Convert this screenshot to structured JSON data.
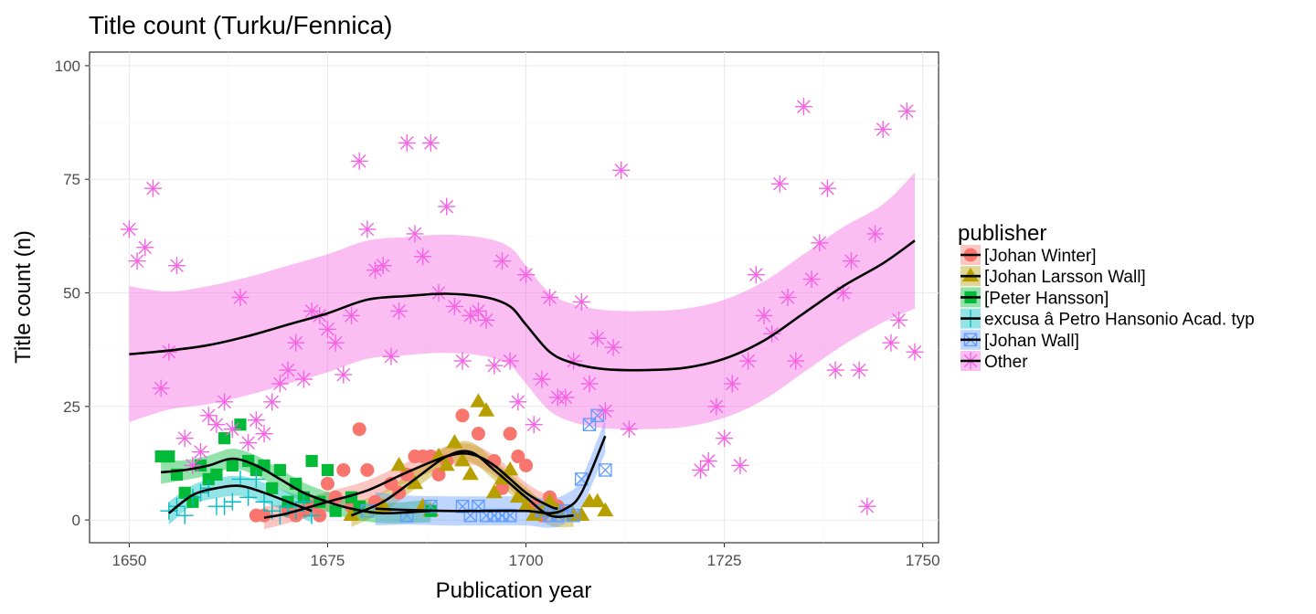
{
  "chart_data": {
    "type": "scatter",
    "title": "Title count (Turku/Fennica)",
    "xlabel": "Publication year",
    "ylabel": "Title count (n)",
    "xlim": [
      1645,
      1752
    ],
    "ylim": [
      -5,
      103
    ],
    "x_ticks": [
      1650,
      1675,
      1700,
      1725,
      1750
    ],
    "y_ticks": [
      0,
      25,
      50,
      75,
      100
    ],
    "grid": true,
    "legend_title": "publisher",
    "legend_position": "right",
    "series": [
      {
        "name": "[Johan Winter]",
        "color": "#F8766D",
        "marker": "circle",
        "points": [
          [
            1666,
            1
          ],
          [
            1667,
            1
          ],
          [
            1670,
            2
          ],
          [
            1671,
            1
          ],
          [
            1672,
            2
          ],
          [
            1673,
            3
          ],
          [
            1674,
            1
          ],
          [
            1675,
            8
          ],
          [
            1676,
            5
          ],
          [
            1677,
            11
          ],
          [
            1678,
            3
          ],
          [
            1679,
            20
          ],
          [
            1680,
            11
          ],
          [
            1681,
            4
          ],
          [
            1683,
            8
          ],
          [
            1684,
            6
          ],
          [
            1685,
            10
          ],
          [
            1686,
            14
          ],
          [
            1687,
            14
          ],
          [
            1688,
            14
          ],
          [
            1689,
            10
          ],
          [
            1690,
            13
          ],
          [
            1692,
            23
          ],
          [
            1694,
            19
          ],
          [
            1696,
            13
          ],
          [
            1697,
            7
          ],
          [
            1698,
            19
          ],
          [
            1699,
            14
          ],
          [
            1700,
            12
          ],
          [
            1701,
            3
          ],
          [
            1702,
            1
          ],
          [
            1703,
            5
          ],
          [
            1704,
            3
          ]
        ],
        "smooth": [
          [
            1667,
            0.5
          ],
          [
            1670,
            1.5
          ],
          [
            1675,
            4
          ],
          [
            1680,
            6.5
          ],
          [
            1685,
            10.5
          ],
          [
            1690,
            14
          ],
          [
            1693,
            14.5
          ],
          [
            1696,
            12
          ],
          [
            1700,
            6
          ],
          [
            1703,
            3
          ],
          [
            1704,
            2.5
          ]
        ]
      },
      {
        "name": "[Johan Larsson Wall]",
        "color": "#B79F00",
        "marker": "triangle",
        "points": [
          [
            1678,
            1
          ],
          [
            1682,
            3
          ],
          [
            1684,
            12
          ],
          [
            1686,
            8
          ],
          [
            1687,
            3
          ],
          [
            1688,
            2
          ],
          [
            1689,
            14
          ],
          [
            1690,
            12
          ],
          [
            1691,
            17
          ],
          [
            1692,
            13
          ],
          [
            1693,
            10
          ],
          [
            1694,
            26
          ],
          [
            1695,
            24
          ],
          [
            1696,
            6
          ],
          [
            1697,
            9
          ],
          [
            1698,
            11
          ],
          [
            1699,
            5
          ],
          [
            1700,
            3
          ],
          [
            1701,
            1
          ],
          [
            1702,
            2
          ],
          [
            1703,
            4
          ],
          [
            1704,
            2
          ],
          [
            1706,
            1
          ],
          [
            1707,
            1
          ],
          [
            1708,
            4
          ],
          [
            1709,
            4
          ],
          [
            1710,
            2
          ]
        ],
        "smooth": [
          [
            1678,
            1
          ],
          [
            1682,
            4
          ],
          [
            1686,
            9
          ],
          [
            1690,
            14
          ],
          [
            1693,
            15
          ],
          [
            1696,
            11
          ],
          [
            1700,
            5
          ],
          [
            1703,
            1
          ],
          [
            1706,
            1
          ]
        ]
      },
      {
        "name": "[Peter Hansson]",
        "color": "#00BA38",
        "marker": "square",
        "points": [
          [
            1654,
            14
          ],
          [
            1655,
            14
          ],
          [
            1656,
            10
          ],
          [
            1657,
            6
          ],
          [
            1658,
            4
          ],
          [
            1659,
            12
          ],
          [
            1660,
            9
          ],
          [
            1661,
            10
          ],
          [
            1662,
            18
          ],
          [
            1663,
            12
          ],
          [
            1664,
            21
          ],
          [
            1665,
            13
          ],
          [
            1666,
            11
          ],
          [
            1667,
            12
          ],
          [
            1668,
            7
          ],
          [
            1669,
            11
          ],
          [
            1670,
            4
          ],
          [
            1671,
            8
          ],
          [
            1672,
            5
          ],
          [
            1673,
            13
          ],
          [
            1674,
            4
          ],
          [
            1675,
            11
          ],
          [
            1676,
            2
          ],
          [
            1678,
            5
          ],
          [
            1679,
            3
          ],
          [
            1688,
            2
          ]
        ],
        "smooth": [
          [
            1654,
            10.5
          ],
          [
            1657,
            11
          ],
          [
            1660,
            12
          ],
          [
            1663,
            13.5
          ],
          [
            1666,
            12
          ],
          [
            1669,
            9
          ],
          [
            1672,
            6
          ],
          [
            1675,
            4
          ],
          [
            1678,
            2.5
          ],
          [
            1682,
            1.5
          ],
          [
            1688,
            2
          ]
        ]
      },
      {
        "name": "excusa â Petro Hansonio Acad. typ",
        "color": "#00BFC4",
        "marker": "plus",
        "points": [
          [
            1655,
            2
          ],
          [
            1656,
            3
          ],
          [
            1657,
            1
          ],
          [
            1658,
            5
          ],
          [
            1659,
            6
          ],
          [
            1660,
            7
          ],
          [
            1661,
            3
          ],
          [
            1662,
            3
          ],
          [
            1663,
            4
          ],
          [
            1664,
            9
          ],
          [
            1665,
            5
          ],
          [
            1666,
            9
          ],
          [
            1667,
            4
          ],
          [
            1668,
            2
          ],
          [
            1669,
            1
          ],
          [
            1670,
            3
          ],
          [
            1671,
            2
          ],
          [
            1672,
            4
          ],
          [
            1673,
            1
          ]
        ],
        "smooth": [
          [
            1655,
            1.5
          ],
          [
            1658,
            5.5
          ],
          [
            1661,
            7
          ],
          [
            1664,
            7.5
          ],
          [
            1667,
            6
          ],
          [
            1670,
            4
          ],
          [
            1673,
            2
          ]
        ]
      },
      {
        "name": "[Johan Wall]",
        "color": "#619CFF",
        "marker": "boxx",
        "points": [
          [
            1680,
            2
          ],
          [
            1685,
            1
          ],
          [
            1688,
            3
          ],
          [
            1692,
            3
          ],
          [
            1693,
            1
          ],
          [
            1694,
            3
          ],
          [
            1695,
            1
          ],
          [
            1696,
            1
          ],
          [
            1697,
            1
          ],
          [
            1698,
            1
          ],
          [
            1702,
            2
          ],
          [
            1703,
            1
          ],
          [
            1704,
            1
          ],
          [
            1705,
            2
          ],
          [
            1706,
            1
          ],
          [
            1707,
            9
          ],
          [
            1708,
            21
          ],
          [
            1709,
            23
          ],
          [
            1710,
            11
          ]
        ],
        "smooth": [
          [
            1681,
            2.5
          ],
          [
            1685,
            2.2
          ],
          [
            1690,
            2
          ],
          [
            1695,
            2
          ],
          [
            1700,
            2
          ],
          [
            1703,
            1.5
          ],
          [
            1705,
            2.5
          ],
          [
            1707,
            6
          ],
          [
            1710,
            18.5
          ]
        ]
      },
      {
        "name": "Other",
        "color": "#F564E3",
        "marker": "asterisk",
        "points": [
          [
            1650,
            64
          ],
          [
            1651,
            57
          ],
          [
            1652,
            60
          ],
          [
            1653,
            73
          ],
          [
            1654,
            29
          ],
          [
            1655,
            37
          ],
          [
            1656,
            56
          ],
          [
            1657,
            18
          ],
          [
            1658,
            12
          ],
          [
            1659,
            15
          ],
          [
            1660,
            23
          ],
          [
            1661,
            21
          ],
          [
            1662,
            26
          ],
          [
            1663,
            20
          ],
          [
            1664,
            49
          ],
          [
            1665,
            17
          ],
          [
            1666,
            22
          ],
          [
            1667,
            19
          ],
          [
            1668,
            26
          ],
          [
            1669,
            30
          ],
          [
            1670,
            33
          ],
          [
            1671,
            39
          ],
          [
            1672,
            31
          ],
          [
            1673,
            46
          ],
          [
            1674,
            45
          ],
          [
            1675,
            42
          ],
          [
            1676,
            39
          ],
          [
            1677,
            32
          ],
          [
            1678,
            45
          ],
          [
            1679,
            79
          ],
          [
            1680,
            64
          ],
          [
            1681,
            55
          ],
          [
            1682,
            56
          ],
          [
            1683,
            36
          ],
          [
            1684,
            46
          ],
          [
            1685,
            83
          ],
          [
            1686,
            63
          ],
          [
            1687,
            58
          ],
          [
            1688,
            83
          ],
          [
            1689,
            50
          ],
          [
            1690,
            69
          ],
          [
            1691,
            47
          ],
          [
            1692,
            35
          ],
          [
            1693,
            45
          ],
          [
            1694,
            46
          ],
          [
            1695,
            44
          ],
          [
            1696,
            34
          ],
          [
            1697,
            57
          ],
          [
            1698,
            35
          ],
          [
            1699,
            26
          ],
          [
            1700,
            54
          ],
          [
            1701,
            21
          ],
          [
            1702,
            31
          ],
          [
            1703,
            49
          ],
          [
            1704,
            27
          ],
          [
            1705,
            27
          ],
          [
            1706,
            35
          ],
          [
            1707,
            48
          ],
          [
            1708,
            30
          ],
          [
            1709,
            40
          ],
          [
            1710,
            24
          ],
          [
            1711,
            38
          ],
          [
            1712,
            77
          ],
          [
            1713,
            20
          ],
          [
            1722,
            11
          ],
          [
            1723,
            13
          ],
          [
            1724,
            25
          ],
          [
            1725,
            18
          ],
          [
            1726,
            30
          ],
          [
            1727,
            12
          ],
          [
            1728,
            35
          ],
          [
            1729,
            54
          ],
          [
            1730,
            45
          ],
          [
            1731,
            41
          ],
          [
            1732,
            74
          ],
          [
            1733,
            49
          ],
          [
            1734,
            35
          ],
          [
            1735,
            91
          ],
          [
            1736,
            53
          ],
          [
            1737,
            61
          ],
          [
            1738,
            73
          ],
          [
            1739,
            33
          ],
          [
            1740,
            50
          ],
          [
            1741,
            57
          ],
          [
            1742,
            33
          ],
          [
            1743,
            3
          ],
          [
            1744,
            63
          ],
          [
            1745,
            86
          ],
          [
            1746,
            39
          ],
          [
            1747,
            44
          ],
          [
            1748,
            90
          ],
          [
            1749,
            37
          ]
        ],
        "smooth": [
          [
            1650,
            36.5
          ],
          [
            1655,
            37.3
          ],
          [
            1660,
            38.5
          ],
          [
            1665,
            40.5
          ],
          [
            1670,
            43
          ],
          [
            1675,
            45.5
          ],
          [
            1680,
            48.5
          ],
          [
            1685,
            49.3
          ],
          [
            1690,
            49.8
          ],
          [
            1695,
            49
          ],
          [
            1698,
            47
          ],
          [
            1700,
            43
          ],
          [
            1703,
            37
          ],
          [
            1706,
            34.5
          ],
          [
            1710,
            33.2
          ],
          [
            1715,
            33
          ],
          [
            1720,
            33.5
          ],
          [
            1725,
            35.5
          ],
          [
            1730,
            39.5
          ],
          [
            1735,
            45.5
          ],
          [
            1740,
            51.5
          ],
          [
            1745,
            56.5
          ],
          [
            1749,
            61.5
          ]
        ]
      }
    ]
  }
}
